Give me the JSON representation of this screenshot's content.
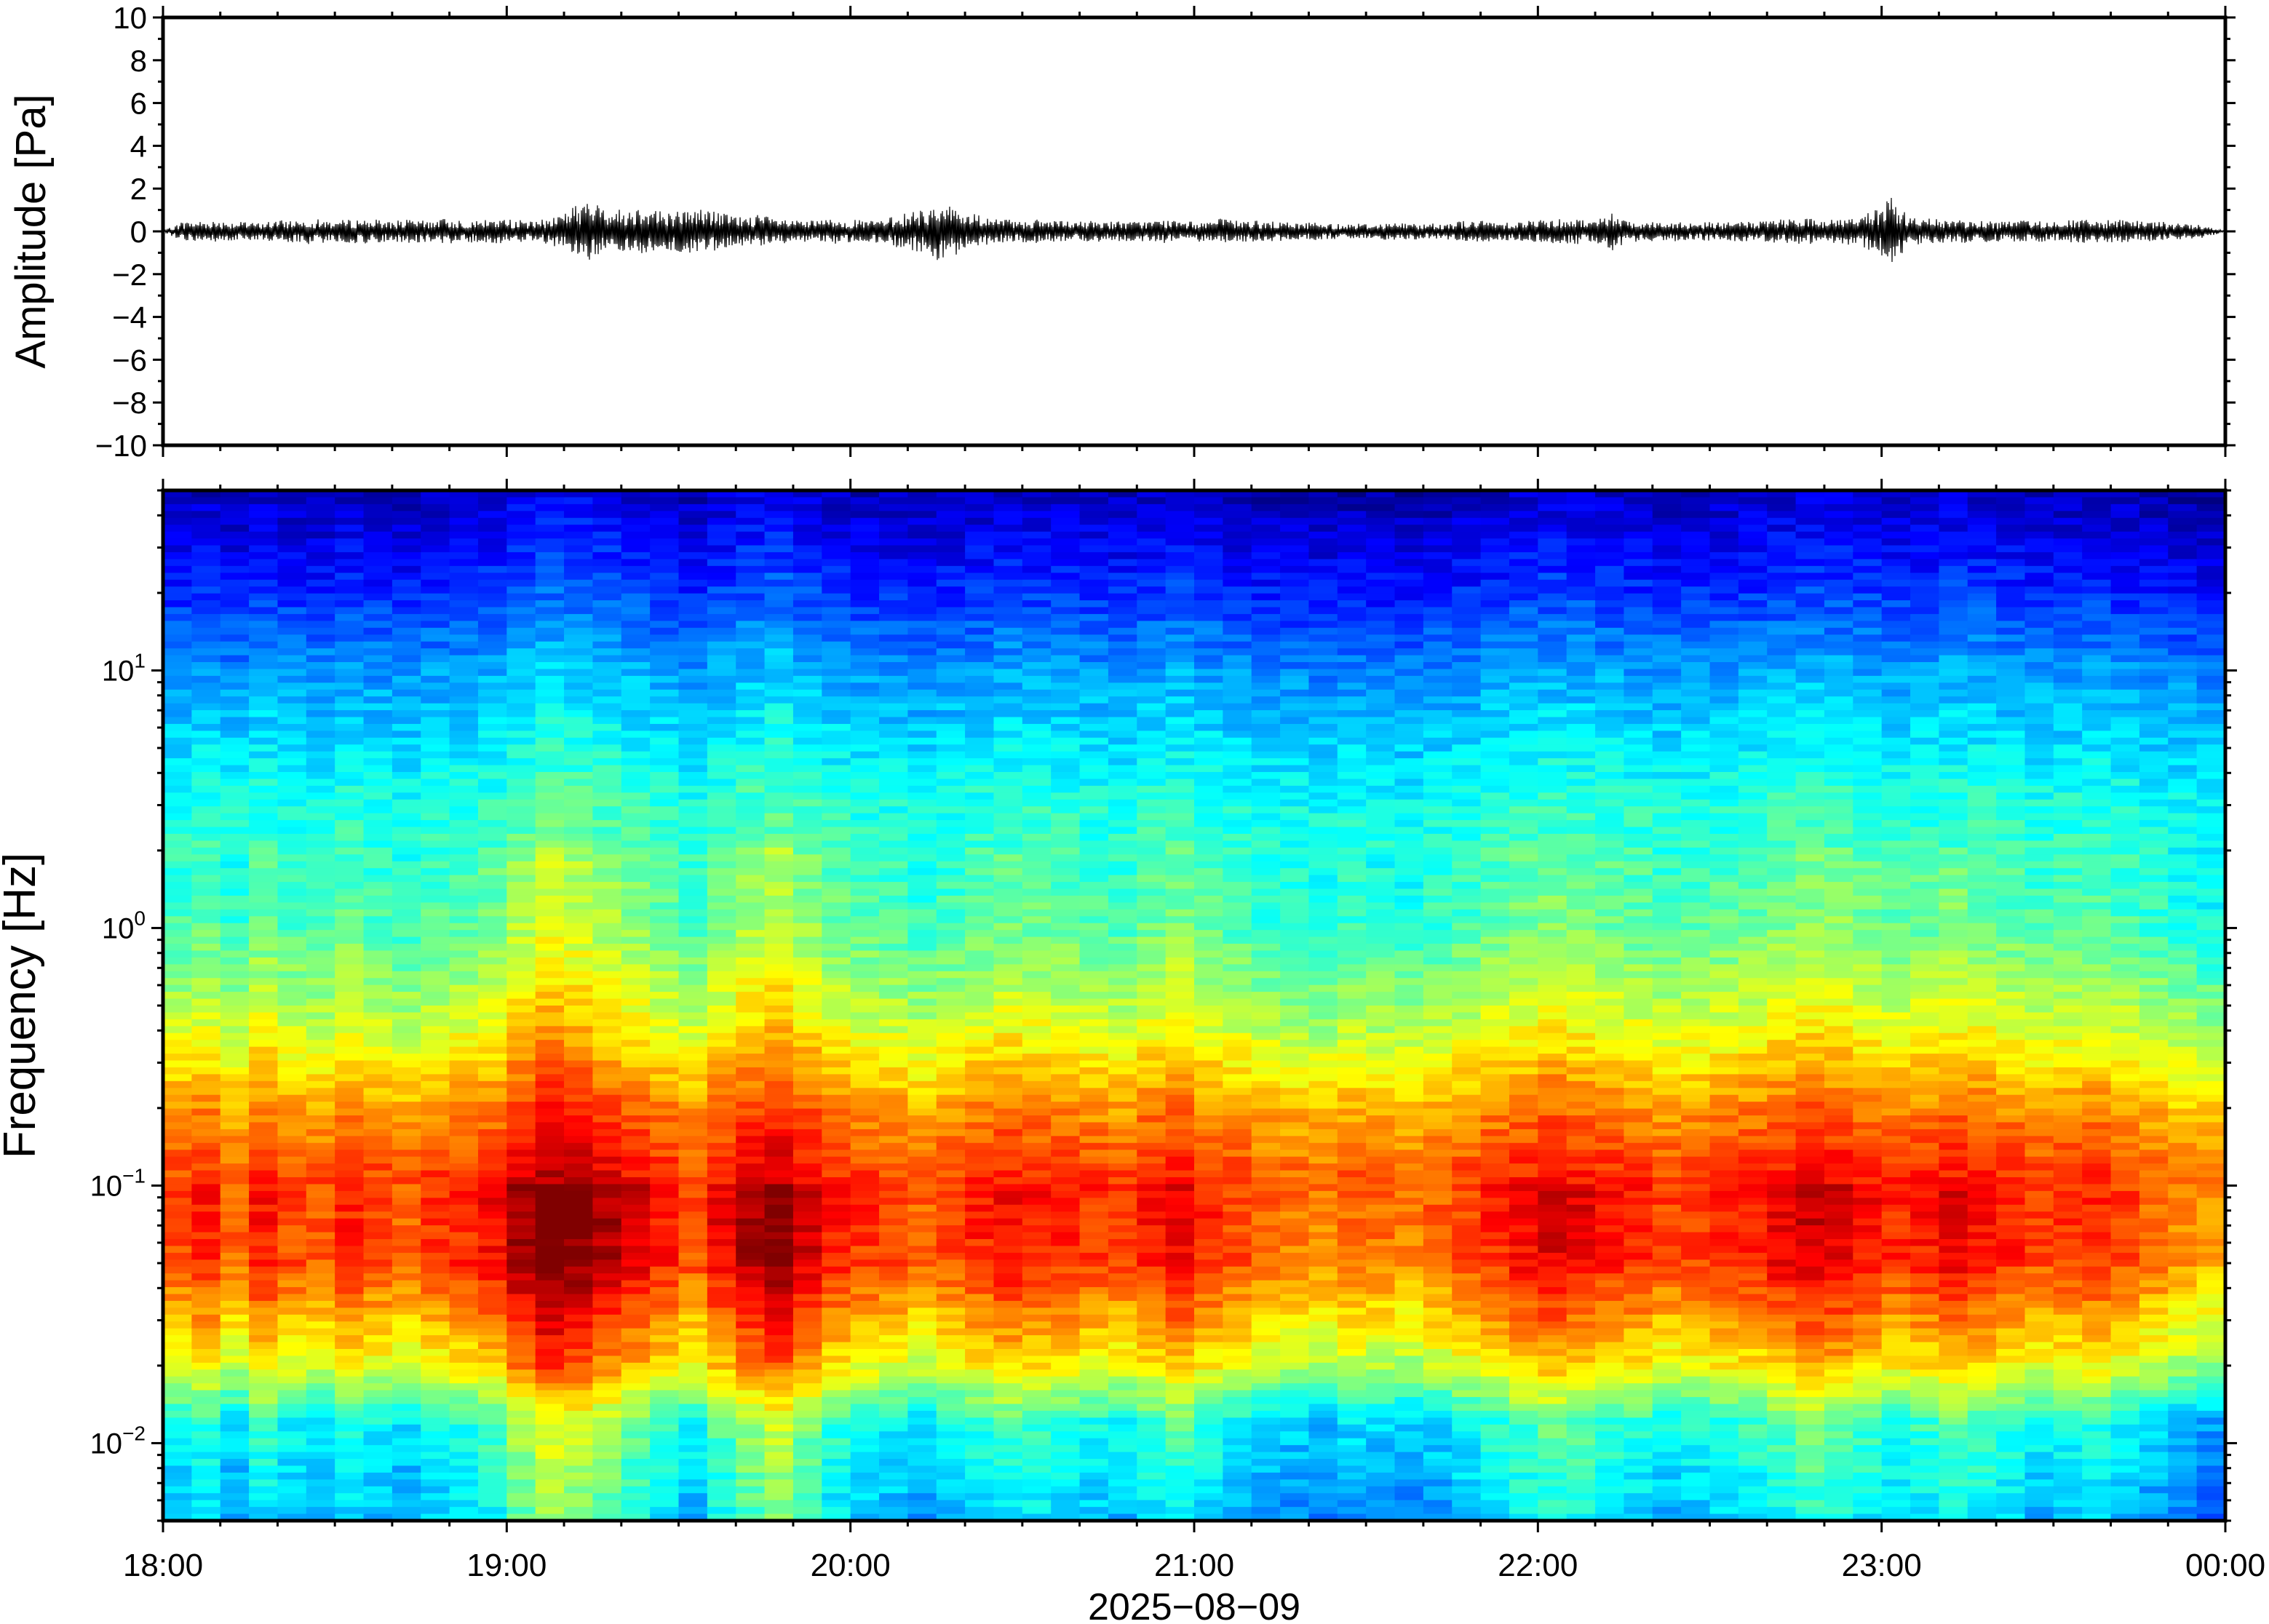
{
  "chart_data": [
    {
      "type": "line",
      "ylabel": "Amplitude [Pa]",
      "ylim": [
        -10,
        10
      ],
      "yticks": [
        10,
        8,
        6,
        4,
        2,
        0,
        -2,
        -4,
        -6,
        -8,
        -10
      ],
      "ytick_labels": [
        "10",
        "8",
        "6",
        "4",
        "2",
        "0",
        "−2",
        "−4",
        "−6",
        "−8",
        "−10"
      ],
      "x_start": "18:00",
      "x_end": "00:00",
      "series": [
        {
          "values": [
            0.0,
            0.45,
            -0.5,
            0.5,
            -0.45,
            0.4,
            -0.5,
            0.55,
            -0.6,
            0.5,
            -0.55,
            0.6,
            -0.5,
            0.55,
            -0.5,
            0.6,
            -0.55,
            0.5,
            -0.6,
            0.55,
            -0.45,
            0.7,
            -1.2,
            1.4,
            -1.1,
            1.0,
            -1.3,
            0.9,
            -1.0,
            1.1,
            -0.9,
            0.7,
            -0.8,
            0.6,
            -0.5,
            0.5,
            -0.6,
            0.55,
            -0.5,
            0.6,
            -0.9,
            1.0,
            -1.5,
            0.9,
            -0.8,
            0.6,
            -0.5,
            0.55,
            -0.5,
            0.45,
            -0.5,
            0.5,
            -0.45,
            0.5,
            -0.55,
            0.45,
            -0.5,
            0.6,
            -0.5,
            0.5,
            -0.45,
            0.4,
            -0.45,
            0.35,
            -0.4,
            0.35,
            -0.4,
            0.4,
            -0.35,
            0.4,
            -0.5,
            0.5,
            -0.45,
            0.5,
            -0.55,
            0.6,
            -0.6,
            0.55,
            -0.9,
            0.5,
            -0.45,
            0.5,
            -0.4,
            0.45,
            -0.4,
            0.5,
            -0.45,
            0.55,
            -0.6,
            0.65,
            -0.55,
            0.7,
            -0.9,
            1.6,
            -0.7,
            0.6,
            -0.55,
            0.55,
            -0.5,
            0.5,
            -0.5,
            0.55,
            -0.45,
            0.6,
            -0.5,
            0.55,
            -0.5,
            0.45,
            -0.45,
            0.35,
            -0.3,
            0.0
          ]
        }
      ]
    },
    {
      "type": "heatmap",
      "ylabel": "Frequency [Hz]",
      "xlabel": "2025−08−09",
      "y_scale": "log",
      "ylim": [
        0.005,
        50
      ],
      "yticks": [
        0.01,
        0.1,
        1,
        10
      ],
      "ytick_labels": [
        {
          "base": "10",
          "exp": "−2"
        },
        {
          "base": "10",
          "exp": "−1"
        },
        {
          "base": "10",
          "exp": "0"
        },
        {
          "base": "10",
          "exp": "1"
        }
      ],
      "x_tick_labels": [
        "18:00",
        "19:00",
        "20:00",
        "21:00",
        "22:00",
        "23:00",
        "00:00"
      ],
      "colormap": "jet",
      "colorbar": "none",
      "band_profile": [
        {
          "freq": 0.005,
          "level": 0.3
        },
        {
          "freq": 0.012,
          "level": 0.38
        },
        {
          "freq": 0.02,
          "level": 0.6
        },
        {
          "freq": 0.05,
          "level": 0.8
        },
        {
          "freq": 0.1,
          "level": 0.82
        },
        {
          "freq": 0.2,
          "level": 0.72
        },
        {
          "freq": 0.4,
          "level": 0.58
        },
        {
          "freq": 1,
          "level": 0.45
        },
        {
          "freq": 3,
          "level": 0.4
        },
        {
          "freq": 10,
          "level": 0.27
        },
        {
          "freq": 20,
          "level": 0.16
        },
        {
          "freq": 50,
          "level": 0.05
        }
      ],
      "time_levels": [
        0.0,
        0.02,
        -0.02,
        0.03,
        0.0,
        -0.01,
        0.02,
        0.0,
        -0.02,
        0.01,
        0.02,
        0.04,
        0.1,
        0.14,
        0.12,
        0.09,
        0.06,
        0.03,
        0.0,
        0.05,
        0.09,
        0.12,
        0.07,
        0.03,
        0.01,
        0.0,
        -0.02,
        0.0,
        0.02,
        0.04,
        0.03,
        0.02,
        0.01,
        0.0,
        0.03,
        0.05,
        0.02,
        0.0,
        -0.02,
        -0.03,
        -0.04,
        -0.02,
        -0.03,
        -0.04,
        -0.02,
        0.0,
        0.02,
        0.04,
        0.06,
        0.05,
        0.03,
        0.02,
        0.0,
        0.01,
        0.02,
        0.03,
        0.05,
        0.07,
        0.06,
        0.04,
        0.02,
        0.03,
        0.05,
        0.04,
        0.02,
        0.0,
        0.01,
        0.02,
        0.0,
        -0.02,
        -0.04,
        -0.06
      ]
    }
  ]
}
